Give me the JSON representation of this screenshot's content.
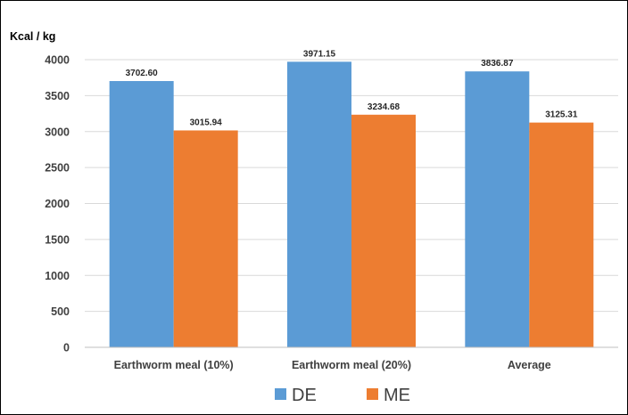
{
  "chart_data": {
    "type": "bar",
    "title": "",
    "ylabel": "Kcal / kg",
    "xlabel": "",
    "categories": [
      "Earthworm meal  (10%)",
      "Earthworm meal  (20%)",
      "Average"
    ],
    "series": [
      {
        "name": "DE",
        "color": "#5b9bd5",
        "values": [
          3702.6,
          3971.15,
          3836.87
        ],
        "labels": [
          "3702.60",
          "3971.15",
          "3836.87"
        ]
      },
      {
        "name": "ME",
        "color": "#ed7d31",
        "values": [
          3015.94,
          3234.68,
          3125.31
        ],
        "labels": [
          "3015.94",
          "3234.68",
          "3125.31"
        ]
      }
    ],
    "ylim": [
      0,
      4000
    ],
    "yticks": [
      "0",
      "500",
      "1000",
      "1500",
      "2000",
      "2500",
      "3000",
      "3500",
      "4000"
    ],
    "grid": true,
    "legend_position": "bottom"
  }
}
